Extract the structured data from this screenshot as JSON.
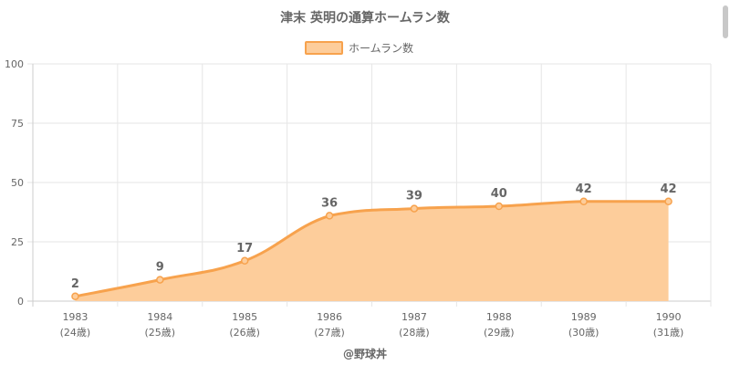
{
  "chart_data": {
    "type": "area",
    "title": "津末 英明の通算ホームラン数",
    "series": [
      {
        "name": "ホームラン数",
        "values": [
          2,
          9,
          17,
          36,
          39,
          40,
          42,
          42
        ]
      }
    ],
    "categories": [
      {
        "year": "1983",
        "age": "(24歳)"
      },
      {
        "year": "1984",
        "age": "(25歳)"
      },
      {
        "year": "1985",
        "age": "(26歳)"
      },
      {
        "year": "1986",
        "age": "(27歳)"
      },
      {
        "year": "1987",
        "age": "(28歳)"
      },
      {
        "year": "1988",
        "age": "(29歳)"
      },
      {
        "year": "1989",
        "age": "(30歳)"
      },
      {
        "year": "1990",
        "age": "(31歳)"
      }
    ],
    "yticks": [
      0,
      25,
      50,
      75,
      100
    ],
    "ylim": [
      0,
      100
    ],
    "grid": true,
    "legend_position": "top-center",
    "colors": {
      "line": "#f7a24d",
      "fill": "#fdcd9b"
    },
    "footer": "@野球丼"
  }
}
